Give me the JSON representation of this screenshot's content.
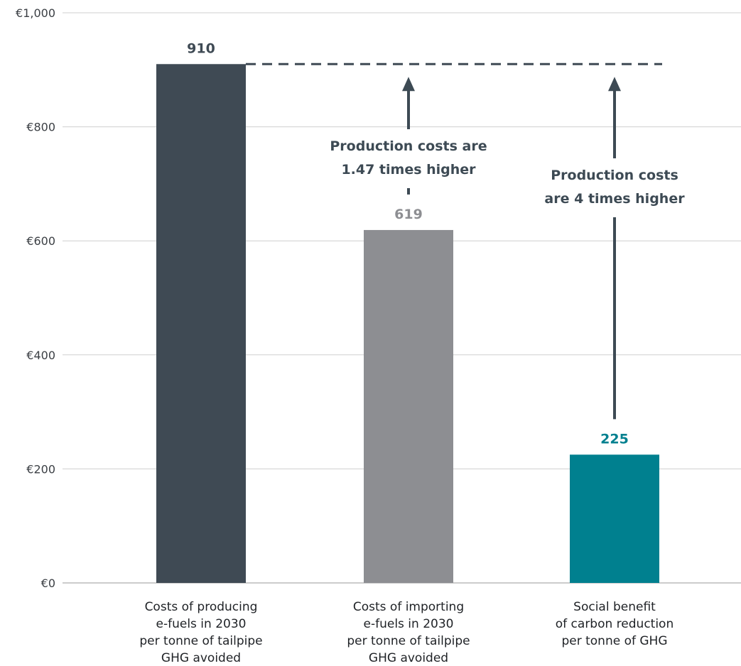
{
  "chart_data": {
    "type": "bar",
    "title": "",
    "xlabel": "",
    "ylabel": "",
    "ylim": [
      0,
      1000
    ],
    "y_ticks": [
      {
        "value": 0,
        "label": "€0"
      },
      {
        "value": 200,
        "label": "€200"
      },
      {
        "value": 400,
        "label": "€400"
      },
      {
        "value": 600,
        "label": "€600"
      },
      {
        "value": 800,
        "label": "€800"
      },
      {
        "value": 1000,
        "label": "€1,000"
      }
    ],
    "grid": true,
    "categories": [
      [
        "Costs of producing",
        "e-fuels in 2030",
        "per tonne of tailpipe",
        "GHG avoided"
      ],
      [
        "Costs of importing",
        "e-fuels in 2030",
        "per tonne of tailpipe",
        "GHG avoided"
      ],
      [
        "Social benefit",
        "of carbon reduction",
        "per tonne of GHG"
      ]
    ],
    "values": [
      910,
      619,
      225
    ],
    "value_labels": [
      "910",
      "619",
      "225"
    ],
    "colors": [
      "#3f4a54",
      "#8d8e92",
      "#00808f"
    ],
    "label_colors": [
      "#3f4a54",
      "#8d8e92",
      "#00808f"
    ],
    "reference_line": {
      "value": 910,
      "style": "dashed",
      "color": "#3f4a54"
    },
    "annotations": [
      {
        "lines": [
          "Production costs are",
          "1.47 times higher"
        ],
        "from_value": 619,
        "to_value": 910,
        "bar_index": 1
      },
      {
        "lines": [
          "Production costs",
          "are 4 times higher"
        ],
        "from_value": 225,
        "to_value": 910,
        "bar_index": 2
      }
    ]
  }
}
